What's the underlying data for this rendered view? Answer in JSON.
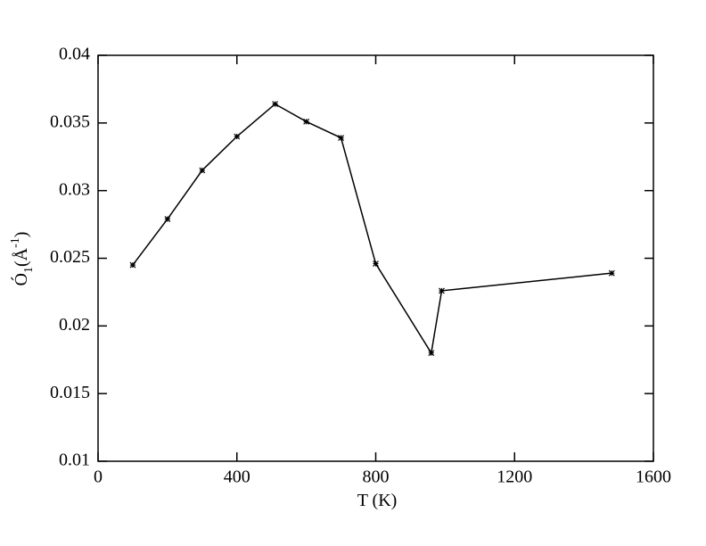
{
  "chart_data": {
    "type": "line",
    "xlabel": "T (K)",
    "ylabel": [
      "Ó",
      "1",
      "(Å",
      "-1",
      ")"
    ],
    "x": [
      100,
      200,
      300,
      400,
      510,
      600,
      700,
      800,
      960,
      990,
      1480
    ],
    "values": [
      0.0245,
      0.0279,
      0.0315,
      0.034,
      0.0364,
      0.0351,
      0.0339,
      0.0246,
      0.018,
      0.0226,
      0.0239
    ],
    "color": "#000000",
    "xlim": [
      0,
      1600
    ],
    "xticks": [
      0,
      400,
      800,
      1200,
      1600
    ],
    "ylim": [
      0.01,
      0.04
    ],
    "yticks": [
      0.01,
      0.015,
      0.02,
      0.025,
      0.03,
      0.035,
      0.04
    ],
    "grid": false
  }
}
